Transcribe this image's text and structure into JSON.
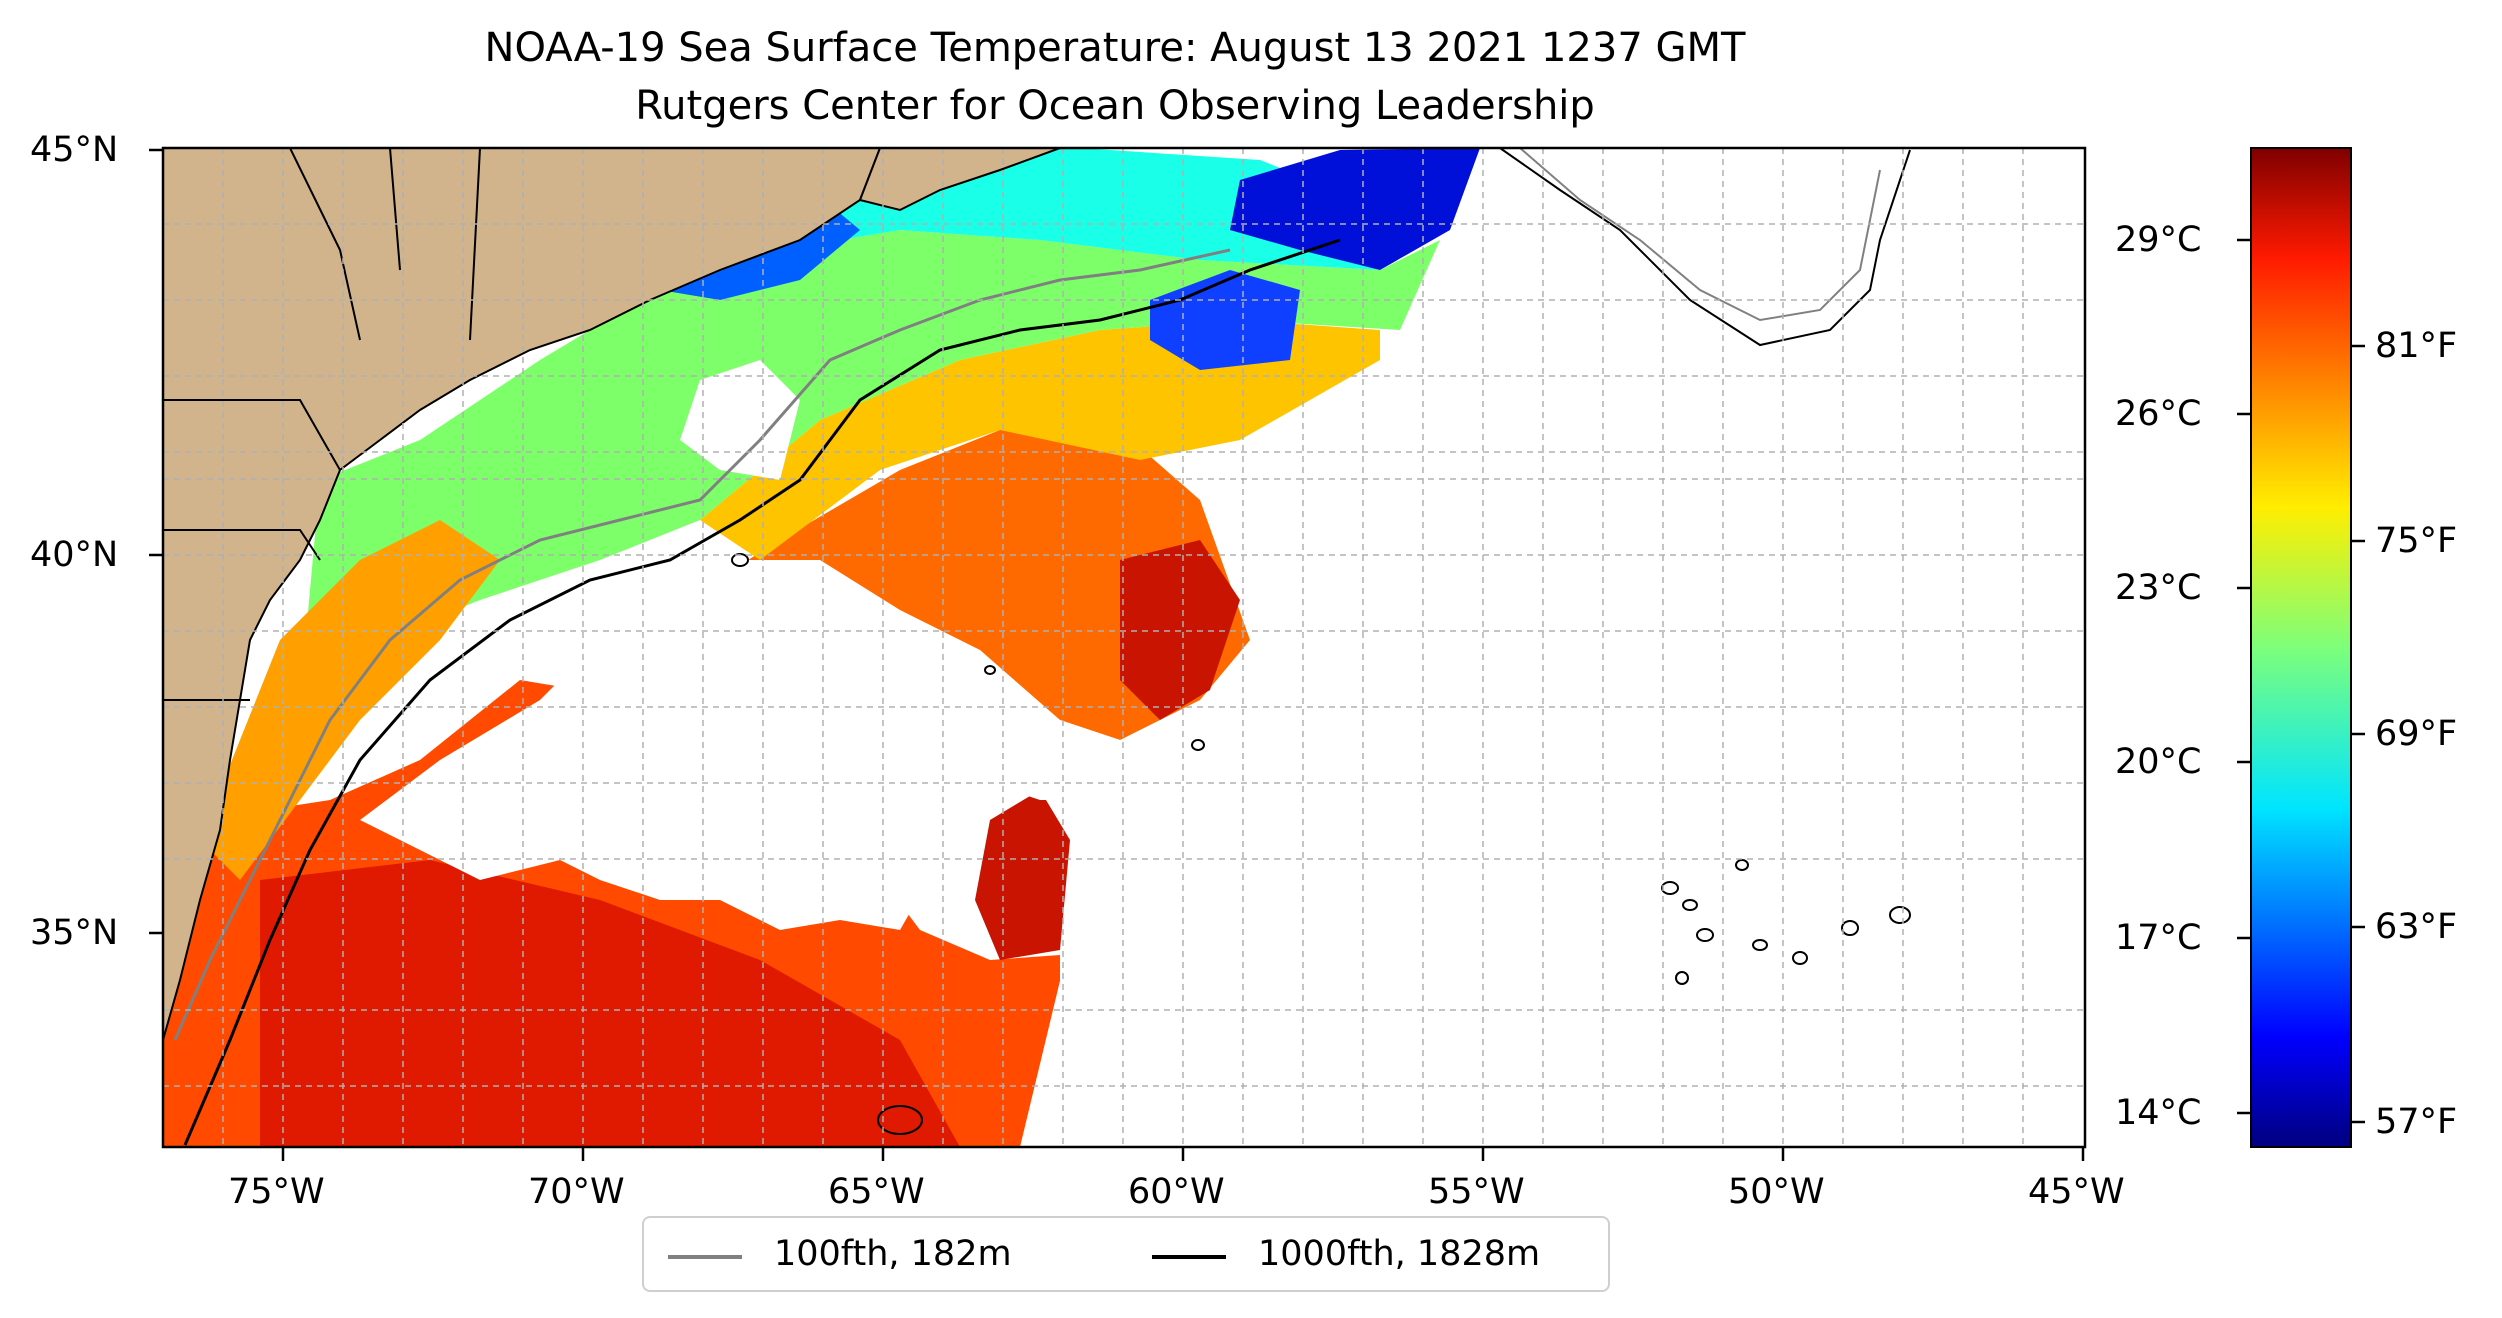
{
  "title": {
    "line1": "NOAA-19 Sea Surface Temperature: August 13 2021 1237 GMT",
    "line2": "Rutgers Center for Ocean Observing Leadership"
  },
  "map": {
    "lon_range": [
      -77,
      -45
    ],
    "lat_range": [
      32.3,
      45
    ],
    "lon_ticks": [
      "75°W",
      "70°W",
      "65°W",
      "60°W",
      "55°W",
      "50°W",
      "45°W"
    ],
    "lat_ticks": [
      "45°N",
      "40°N",
      "35°N"
    ],
    "gridlines": true,
    "land_color": "#d2b48c",
    "ocean_no_data_color": "#ffffff"
  },
  "colorbar": {
    "colormap": "jet",
    "celsius_ticks": [
      "29°C",
      "26°C",
      "23°C",
      "20°C",
      "17°C",
      "14°C"
    ],
    "fahrenheit_ticks": [
      "81°F",
      "75°F",
      "69°F",
      "63°F",
      "57°F"
    ]
  },
  "legend": {
    "items": [
      {
        "label": "100fth, 182m",
        "color": "#808080"
      },
      {
        "label": "1000fth, 1828m",
        "color": "#000000"
      }
    ]
  }
}
